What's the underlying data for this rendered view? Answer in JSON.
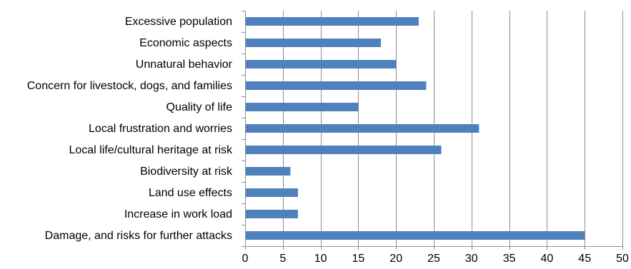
{
  "chart_data": {
    "type": "bar",
    "orientation": "horizontal",
    "categories": [
      "Excessive population",
      "Economic aspects",
      "Unnatural behavior",
      "Concern for livestock, dogs, and families",
      "Quality of life",
      "Local frustration and worries",
      "Local life/cultural heritage at risk",
      "Biodiversity at risk",
      "Land use effects",
      "Increase in work load",
      "Damage, and risks for further attacks"
    ],
    "values": [
      23,
      18,
      20,
      24,
      15,
      31,
      26,
      6,
      7,
      7,
      45
    ],
    "title": "",
    "xlabel": "",
    "ylabel": "",
    "xlim": [
      0,
      50
    ],
    "xticks": [
      "0",
      "5",
      "10",
      "15",
      "20",
      "25",
      "30",
      "35",
      "40",
      "45",
      "50"
    ],
    "grid": true,
    "legend": "none",
    "bar_color": "#4F81BD"
  }
}
